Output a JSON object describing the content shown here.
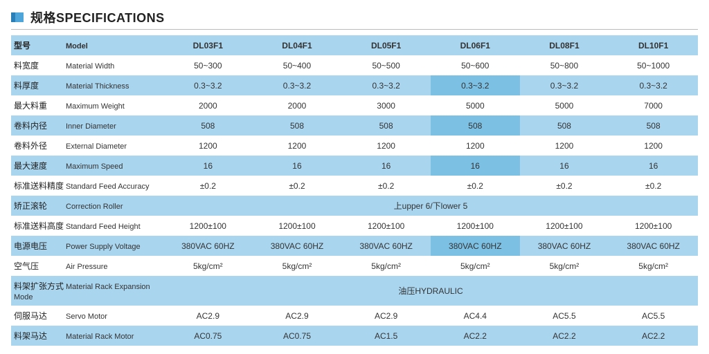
{
  "title": "规格SPECIFICATIONS",
  "table": {
    "columns": [
      "DL03F1",
      "DL04F1",
      "DL05F1",
      "DL06F1",
      "DL08F1",
      "DL10F1"
    ],
    "highlight_col_index": 3,
    "label_col_width": "220px",
    "row_colors": {
      "blue": "#a9d5ef",
      "white": "#ffffff",
      "highlight": "#7cc0e4"
    },
    "rows": [
      {
        "cn": "型号",
        "en": "Model",
        "type": "header",
        "band": "blue",
        "highlight": false
      },
      {
        "cn": "料宽度",
        "en": "Material Width",
        "band": "white",
        "cells": [
          "50~300",
          "50~400",
          "50~500",
          "50~600",
          "50~800",
          "50~1000"
        ],
        "highlight": false
      },
      {
        "cn": "料厚度",
        "en": "Material Thickness",
        "band": "blue",
        "cells": [
          "0.3~3.2",
          "0.3~3.2",
          "0.3~3.2",
          "0.3~3.2",
          "0.3~3.2",
          "0.3~3.2"
        ],
        "highlight": true
      },
      {
        "cn": "最大料重",
        "en": "Maximum Weight",
        "band": "white",
        "cells": [
          "2000",
          "2000",
          "3000",
          "5000",
          "5000",
          "7000"
        ],
        "highlight": false
      },
      {
        "cn": "卷料内径",
        "en": "Inner Diameter",
        "band": "blue",
        "cells": [
          "508",
          "508",
          "508",
          "508",
          "508",
          "508"
        ],
        "highlight": true
      },
      {
        "cn": "卷料外径",
        "en": "External Diameter",
        "band": "white",
        "cells": [
          "1200",
          "1200",
          "1200",
          "1200",
          "1200",
          "1200"
        ],
        "highlight": false
      },
      {
        "cn": "最大速度",
        "en": "Maximum Speed",
        "band": "blue",
        "cells": [
          "16",
          "16",
          "16",
          "16",
          "16",
          "16"
        ],
        "highlight": true
      },
      {
        "cn": "标准送料精度",
        "en": "Standard Feed Accuracy",
        "band": "white",
        "cells": [
          "±0.2",
          "±0.2",
          "±0.2",
          "±0.2",
          "±0.2",
          "±0.2"
        ],
        "highlight": false
      },
      {
        "cn": "矫正滚轮",
        "en": "Correction Roller",
        "band": "blue",
        "span": true,
        "span_text": "上upper 6/下lower 5",
        "highlight": false
      },
      {
        "cn": "标准送料高度",
        "en": "Standard Feed Height",
        "band": "white",
        "cells": [
          "1200±100",
          "1200±100",
          "1200±100",
          "1200±100",
          "1200±100",
          "1200±100"
        ],
        "highlight": false
      },
      {
        "cn": "电源电压",
        "en": "Power Supply Voltage",
        "band": "blue",
        "cells": [
          "380VAC 60HZ",
          "380VAC 60HZ",
          "380VAC 60HZ",
          "380VAC 60HZ",
          "380VAC 60HZ",
          "380VAC 60HZ"
        ],
        "highlight": true
      },
      {
        "cn": "空气压",
        "en": "Air Pressure",
        "band": "white",
        "cells": [
          "5kg/cm²",
          "5kg/cm²",
          "5kg/cm²",
          "5kg/cm²",
          "5kg/cm²",
          "5kg/cm²"
        ],
        "highlight": false
      },
      {
        "cn": "料架扩张方式",
        "en": "Material Rack Expansion Mode",
        "band": "blue",
        "span": true,
        "span_text": "油压HYDRAULIC",
        "highlight": false
      },
      {
        "cn": "伺服马达",
        "en": "Servo Motor",
        "band": "white",
        "cells": [
          "AC2.9",
          "AC2.9",
          "AC2.9",
          "AC4.4",
          "AC5.5",
          "AC5.5"
        ],
        "highlight": false
      },
      {
        "cn": "料架马达",
        "en": "Material Rack Motor",
        "band": "blue",
        "cells": [
          "AC0.75",
          "AC0.75",
          "AC1.5",
          "AC2.2",
          "AC2.2",
          "AC2.2"
        ],
        "highlight": false
      }
    ]
  }
}
